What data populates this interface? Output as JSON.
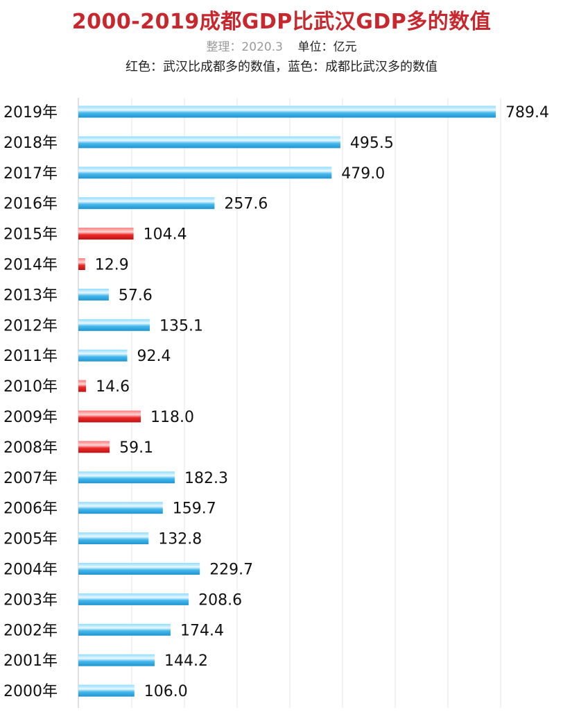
{
  "header": {
    "title": "2000-2019成都GDP比武汉GDP多的数值",
    "note": "整理：2020.3",
    "unit": "单位：亿元",
    "legend_text": "红色：武汉比成都多的数值，蓝色：成都比武汉多的数值"
  },
  "chart_data": {
    "type": "bar",
    "orientation": "horizontal",
    "title": "2000-2019成都GDP比武汉GDP多的数值",
    "unit": "单位：亿元",
    "categories": [
      "2019年",
      "2018年",
      "2017年",
      "2016年",
      "2015年",
      "2014年",
      "2013年",
      "2012年",
      "2011年",
      "2010年",
      "2009年",
      "2008年",
      "2007年",
      "2006年",
      "2005年",
      "2004年",
      "2003年",
      "2002年",
      "2001年",
      "2000年"
    ],
    "values": [
      789.4,
      495.5,
      479.0,
      257.6,
      104.4,
      12.9,
      57.6,
      135.1,
      92.4,
      14.6,
      118.0,
      59.1,
      182.3,
      159.7,
      132.8,
      229.7,
      208.6,
      174.4,
      144.2,
      106.0
    ],
    "value_labels": [
      "789.4",
      "495.5",
      "479.0",
      "257.6",
      "104.4",
      "12.9",
      "57.6",
      "135.1",
      "92.4",
      "14.6",
      "118.0",
      "59.1",
      "182.3",
      "159.7",
      "132.8",
      "229.7",
      "208.6",
      "174.4",
      "144.2",
      "106.0"
    ],
    "leader": [
      "成都",
      "成都",
      "成都",
      "成都",
      "武汉",
      "武汉",
      "成都",
      "成都",
      "成都",
      "武汉",
      "武汉",
      "武汉",
      "成都",
      "成都",
      "成都",
      "成都",
      "成都",
      "成都",
      "成都",
      "成都"
    ],
    "colors": {
      "成都": "#3bb0e3",
      "武汉": "#e32626"
    },
    "xlim": [
      0,
      800
    ],
    "grid": true,
    "legend": "top"
  }
}
